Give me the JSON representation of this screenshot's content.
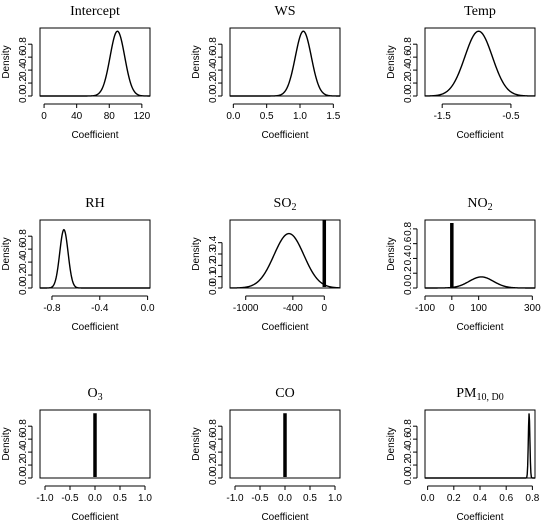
{
  "chart_data": [
    {
      "type": "line",
      "title": "Intercept",
      "title_sub": "",
      "title_tail": "",
      "xlabel": "Coefficient",
      "ylabel": "Density",
      "xlim": [
        -5,
        130
      ],
      "ylim": [
        0,
        1.05
      ],
      "xticks": [
        0,
        40,
        80,
        120
      ],
      "xtick_labels": [
        "0",
        "40",
        "80",
        "120"
      ],
      "yticks": [
        0,
        0.2,
        0.4,
        0.6,
        0.8
      ],
      "ytick_labels": [
        "0.0",
        "0.2",
        "0.4",
        "0.6",
        "0.8"
      ],
      "series": [
        {
          "curve": "normal",
          "mean": 90,
          "sd": 9,
          "peak": 1.0,
          "x_range": [
            -5,
            130
          ]
        }
      ]
    },
    {
      "type": "line",
      "title": "WS",
      "title_sub": "",
      "title_tail": "",
      "xlabel": "Coefficient",
      "ylabel": "Density",
      "xlim": [
        -0.05,
        1.6
      ],
      "ylim": [
        0,
        1.05
      ],
      "xticks": [
        0,
        0.5,
        1.0,
        1.5
      ],
      "xtick_labels": [
        "0.0",
        "0.5",
        "1.0",
        "1.5"
      ],
      "yticks": [
        0,
        0.2,
        0.4,
        0.6,
        0.8
      ],
      "ytick_labels": [
        "0.0",
        "0.2",
        "0.4",
        "0.6",
        "0.8"
      ],
      "series": [
        {
          "curve": "normal",
          "mean": 1.05,
          "sd": 0.12,
          "peak": 1.0,
          "x_range": [
            -0.05,
            1.6
          ]
        }
      ]
    },
    {
      "type": "line",
      "title": "Temp",
      "title_sub": "",
      "title_tail": "",
      "xlabel": "Coefficient",
      "ylabel": "Density",
      "xlim": [
        -1.75,
        -0.15
      ],
      "ylim": [
        0,
        1.05
      ],
      "xticks": [
        -1.5,
        -0.5
      ],
      "xtick_labels": [
        "-1.5",
        "-0.5"
      ],
      "yticks": [
        0,
        0.2,
        0.4,
        0.6,
        0.8
      ],
      "ytick_labels": [
        "0.0",
        "0.2",
        "0.4",
        "0.6",
        "0.8"
      ],
      "series": [
        {
          "curve": "normal",
          "mean": -0.97,
          "sd": 0.2,
          "peak": 1.0,
          "x_range": [
            -1.75,
            -0.15
          ]
        }
      ]
    },
    {
      "type": "line",
      "title": "RH",
      "title_sub": "",
      "title_tail": "",
      "xlabel": "Coefficient",
      "ylabel": "Density",
      "xlim": [
        -0.9,
        0.02
      ],
      "ylim": [
        0,
        1.05
      ],
      "xticks": [
        -0.8,
        -0.4,
        0.0
      ],
      "xtick_labels": [
        "-0.8",
        "-0.4",
        "0.0"
      ],
      "yticks": [
        0,
        0.2,
        0.4,
        0.6,
        0.8
      ],
      "ytick_labels": [
        "0.0",
        "0.2",
        "0.4",
        "0.6",
        "0.8"
      ],
      "series": [
        {
          "curve": "normal",
          "mean": -0.7,
          "sd": 0.035,
          "peak": 0.9,
          "x_range": [
            -0.9,
            0.02
          ]
        }
      ]
    },
    {
      "type": "line",
      "title": "SO",
      "title_sub": "2",
      "title_tail": "",
      "xlabel": "Coefficient",
      "ylabel": "Density",
      "xlim": [
        -1200,
        200
      ],
      "ylim": [
        0,
        0.6
      ],
      "xticks": [
        -1000,
        -400,
        0
      ],
      "xtick_labels": [
        "-1000",
        "-400",
        "0"
      ],
      "yticks": [
        0,
        0.1,
        0.2,
        0.3,
        0.4
      ],
      "ytick_labels": [
        "0.0",
        "0.1",
        "0.2",
        "0.3",
        "0.4"
      ],
      "series": [
        {
          "curve": "normal",
          "mean": -450,
          "sd": 190,
          "peak": 0.48,
          "x_range": [
            -1200,
            200
          ]
        }
      ],
      "spike_x": 0,
      "spike_top": 0.6
    },
    {
      "type": "line",
      "title": "NO",
      "title_sub": "2",
      "title_tail": "",
      "xlabel": "Coefficient",
      "ylabel": "Density",
      "xlim": [
        -100,
        310
      ],
      "ylim": [
        0,
        0.92
      ],
      "xticks": [
        -100,
        0,
        100,
        300
      ],
      "xtick_labels": [
        "-100",
        "0",
        "100",
        "300"
      ],
      "yticks": [
        0,
        0.2,
        0.4,
        0.6,
        0.8
      ],
      "ytick_labels": [
        "0.0",
        "0.2",
        "0.4",
        "0.6",
        "0.8"
      ],
      "series": [
        {
          "curve": "normal",
          "mean": 110,
          "sd": 45,
          "peak": 0.15,
          "x_range": [
            -100,
            310
          ]
        }
      ],
      "spike_x": 0,
      "spike_top": 0.88
    },
    {
      "type": "line",
      "title": "O",
      "title_sub": "3",
      "title_tail": "",
      "xlabel": "Coefficient",
      "ylabel": "Density",
      "xlim": [
        -1.1,
        1.1
      ],
      "ylim": [
        0,
        1.05
      ],
      "xticks": [
        -1.0,
        -0.5,
        0.0,
        0.5,
        1.0
      ],
      "xtick_labels": [
        "-1.0",
        "-0.5",
        "0.0",
        "0.5",
        "1.0"
      ],
      "yticks": [
        0,
        0.2,
        0.4,
        0.6,
        0.8
      ],
      "ytick_labels": [
        "0.0",
        "0.2",
        "0.4",
        "0.6",
        "0.8"
      ],
      "series": [],
      "spike_x": 0,
      "spike_top": 1.0
    },
    {
      "type": "line",
      "title": "CO",
      "title_sub": "",
      "title_tail": "",
      "xlabel": "Coefficient",
      "ylabel": "Density",
      "xlim": [
        -1.1,
        1.1
      ],
      "ylim": [
        0,
        1.05
      ],
      "xticks": [
        -1.0,
        -0.5,
        0.0,
        0.5,
        1.0
      ],
      "xtick_labels": [
        "-1.0",
        "-0.5",
        "0.0",
        "0.5",
        "1.0"
      ],
      "yticks": [
        0,
        0.2,
        0.4,
        0.6,
        0.8
      ],
      "ytick_labels": [
        "0.0",
        "0.2",
        "0.4",
        "0.6",
        "0.8"
      ],
      "series": [],
      "spike_x": 0,
      "spike_top": 1.0
    },
    {
      "type": "line",
      "title": "PM",
      "title_sub": "10, D0",
      "title_tail": "",
      "xlabel": "Coefficient",
      "ylabel": "Density",
      "xlim": [
        -0.02,
        0.82
      ],
      "ylim": [
        0,
        1.05
      ],
      "xticks": [
        0,
        0.2,
        0.4,
        0.6,
        0.8
      ],
      "xtick_labels": [
        "0.0",
        "0.2",
        "0.4",
        "0.6",
        "0.8"
      ],
      "yticks": [
        0,
        0.2,
        0.4,
        0.6,
        0.8
      ],
      "ytick_labels": [
        "0.0",
        "0.2",
        "0.4",
        "0.6",
        "0.8"
      ],
      "series": [
        {
          "curve": "normal",
          "mean": 0.775,
          "sd": 0.006,
          "peak": 1.0,
          "x_range": [
            -0.02,
            0.82
          ]
        }
      ]
    }
  ]
}
